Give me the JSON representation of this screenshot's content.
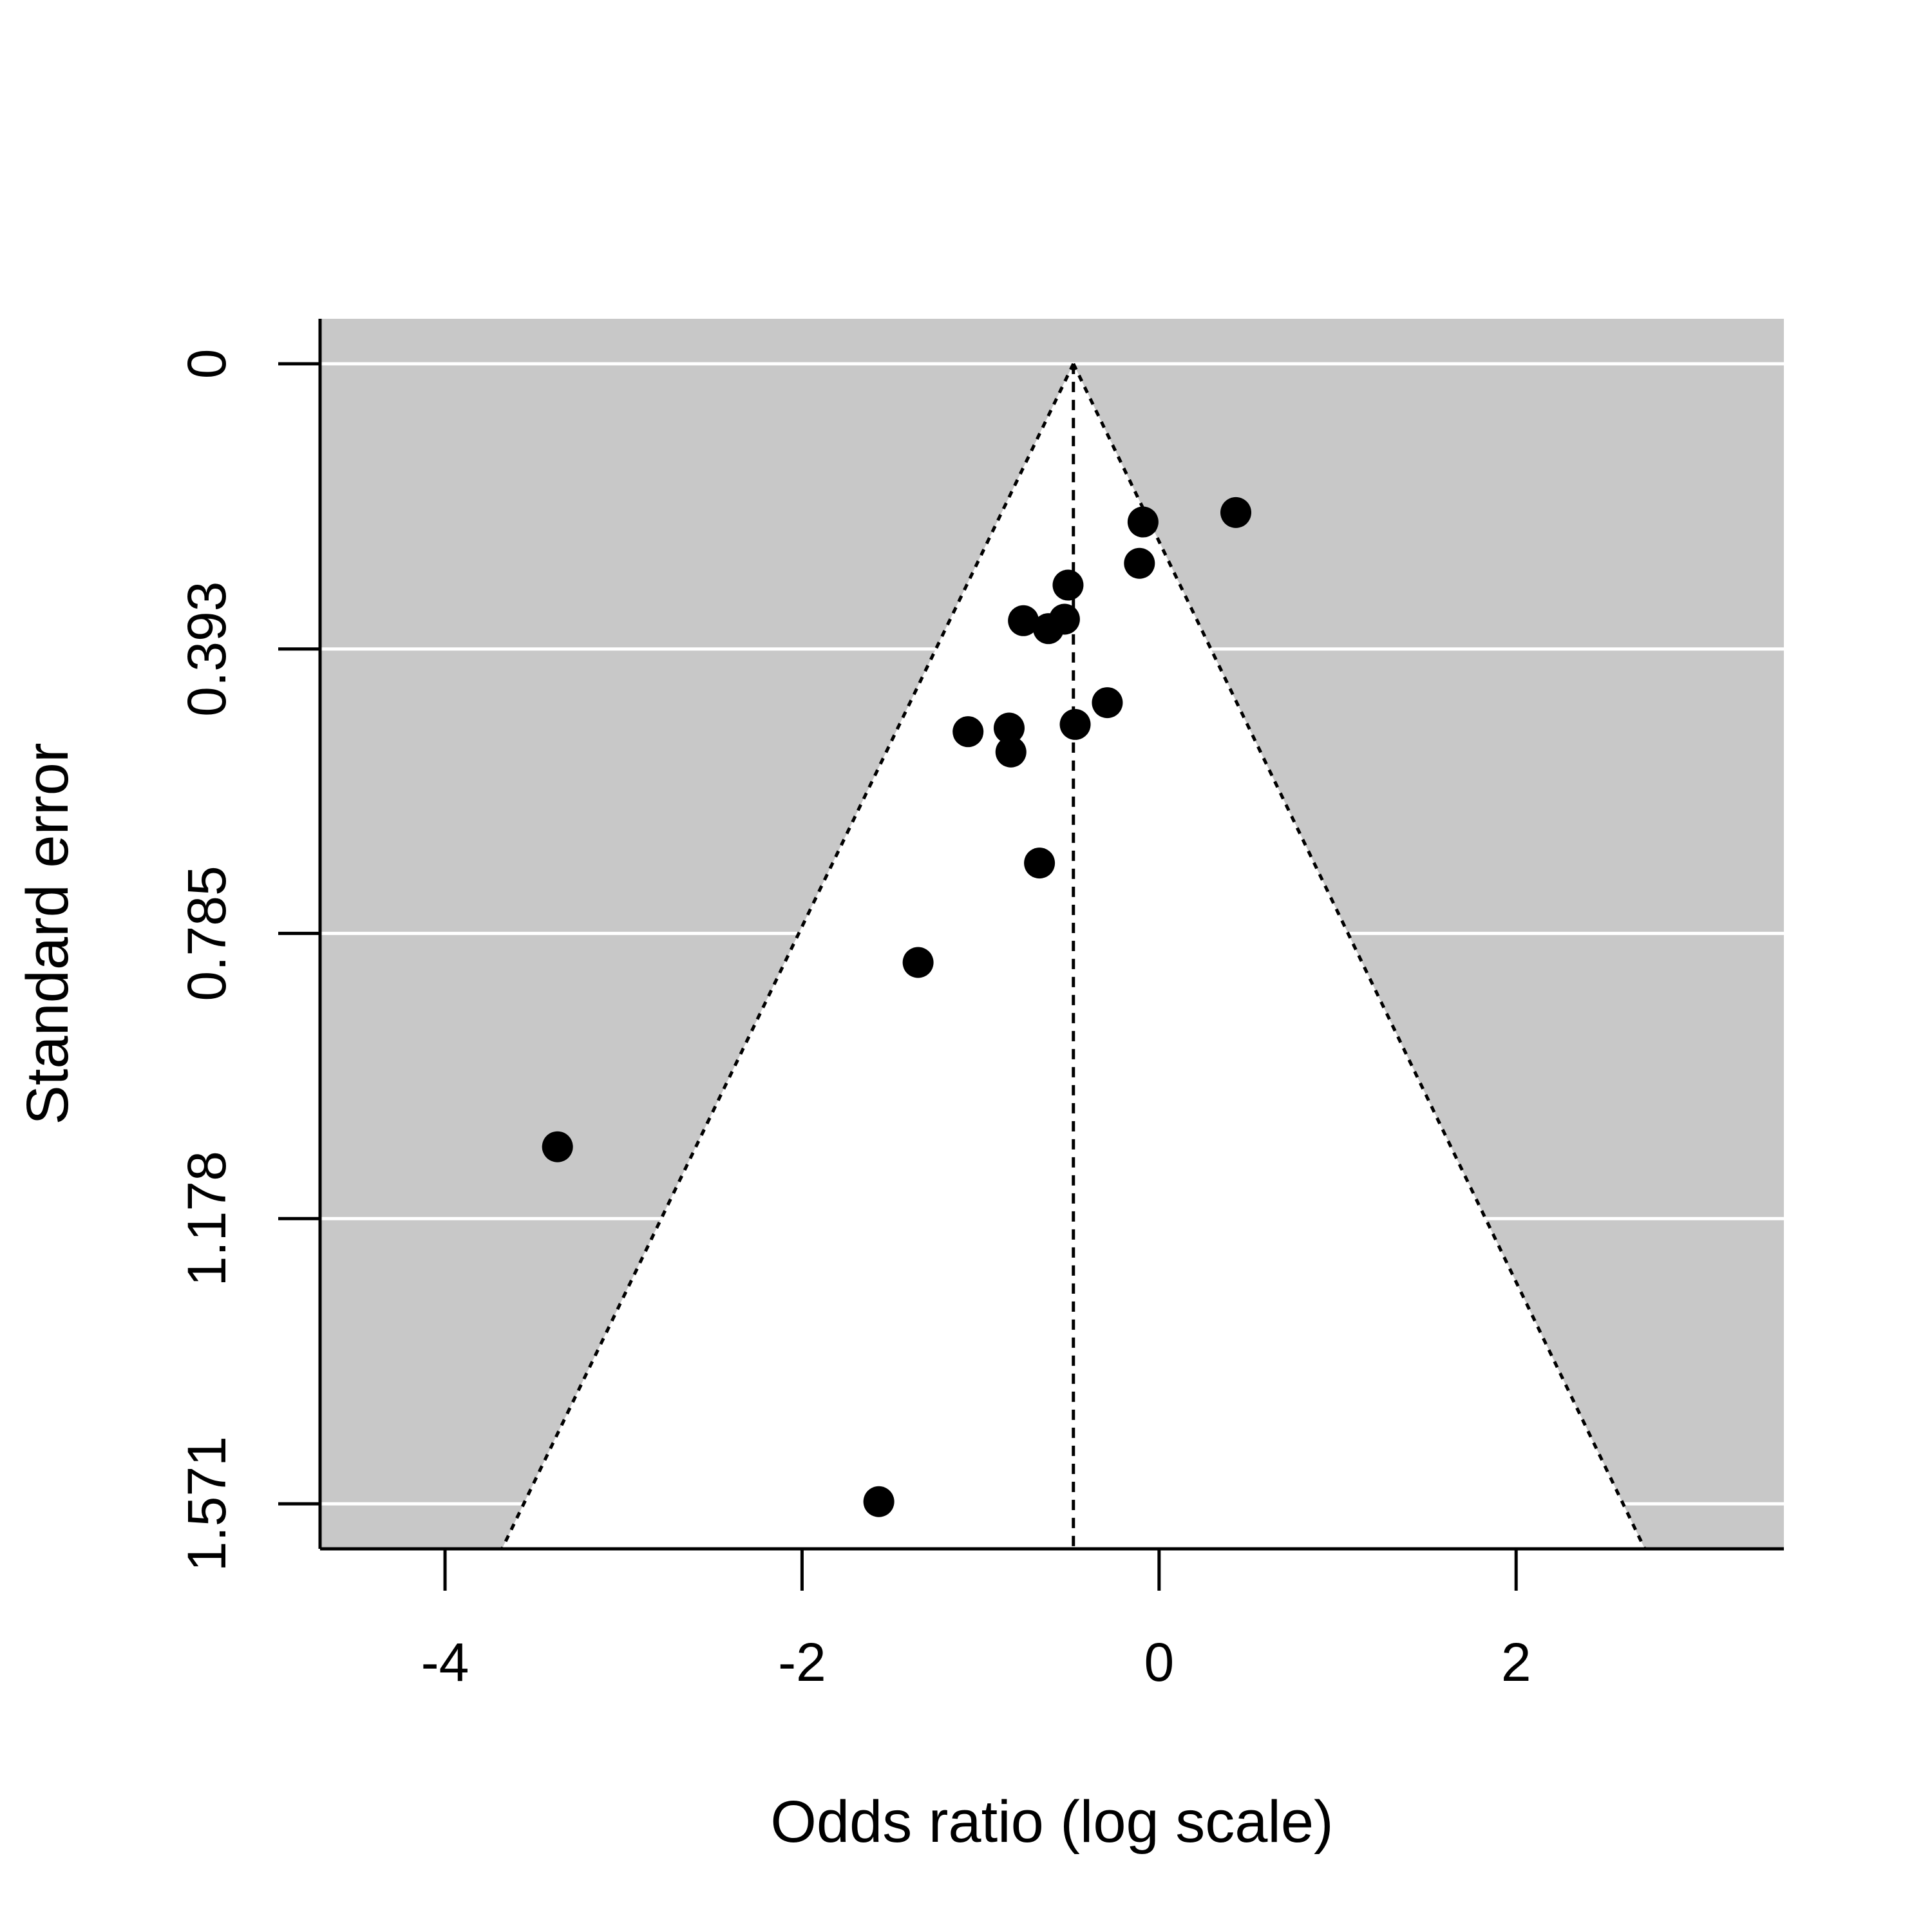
{
  "chart_data": {
    "type": "scatter",
    "subtype": "funnel-plot",
    "title": "",
    "xlabel": "Odds ratio (log scale)",
    "ylabel": "Standard error",
    "xlim": [
      -4.7,
      3.5
    ],
    "ylim": [
      1.633,
      -0.062
    ],
    "y_reversed": true,
    "x_ticks": [
      -4,
      -2,
      0,
      2
    ],
    "x_tick_labels": [
      "-4",
      "-2",
      "0",
      "2"
    ],
    "y_ticks": [
      0,
      0.393,
      0.785,
      1.178,
      1.571
    ],
    "y_tick_labels": [
      "0",
      "0.393",
      "0.785",
      "1.178",
      "1.571"
    ],
    "grid": "horizontal white lines at y ticks",
    "background_color": "#c8c8c8",
    "funnel_fill_color": "#ffffff",
    "point_color": "#000000",
    "pooled_estimate": -0.48,
    "funnel_z": 1.96,
    "points": [
      {
        "x": 0.43,
        "y": 0.205
      },
      {
        "x": -0.09,
        "y": 0.218
      },
      {
        "x": -0.11,
        "y": 0.275
      },
      {
        "x": -0.51,
        "y": 0.305
      },
      {
        "x": -0.53,
        "y": 0.352
      },
      {
        "x": -0.62,
        "y": 0.365
      },
      {
        "x": -0.76,
        "y": 0.354
      },
      {
        "x": -0.29,
        "y": 0.467
      },
      {
        "x": -0.47,
        "y": 0.497
      },
      {
        "x": -0.84,
        "y": 0.502
      },
      {
        "x": -1.07,
        "y": 0.507
      },
      {
        "x": -0.83,
        "y": 0.535
      },
      {
        "x": -0.67,
        "y": 0.688
      },
      {
        "x": -1.35,
        "y": 0.825
      },
      {
        "x": -3.37,
        "y": 1.079
      },
      {
        "x": -1.57,
        "y": 1.568
      }
    ]
  }
}
